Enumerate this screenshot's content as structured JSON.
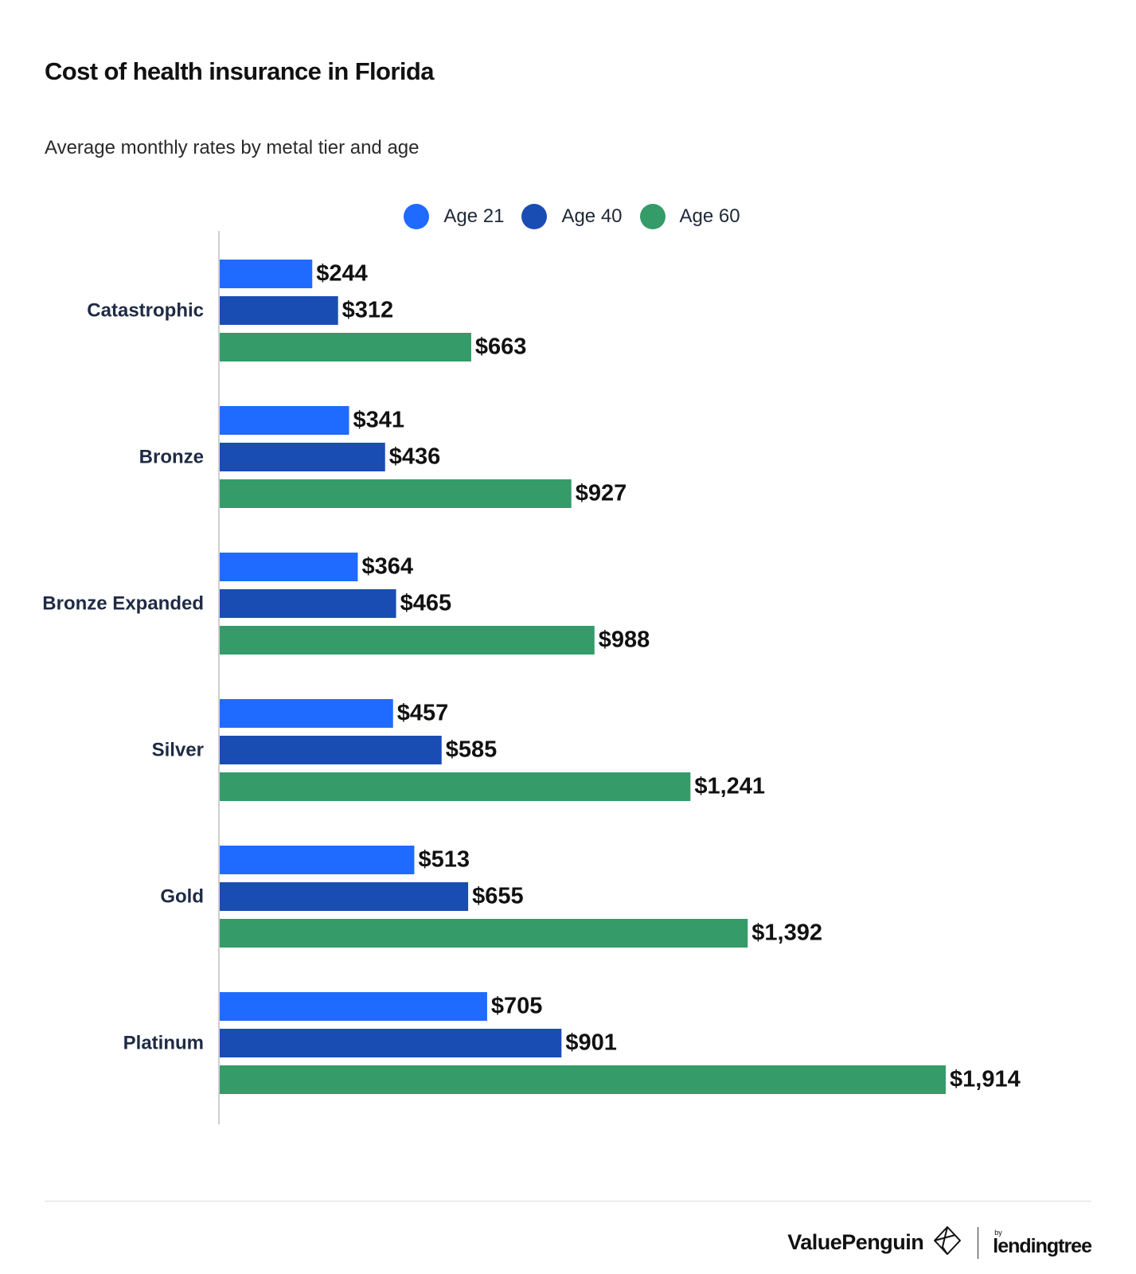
{
  "chart_data": {
    "type": "bar",
    "orientation": "horizontal",
    "title": "Cost of health insurance in Florida",
    "subtitle": "Average monthly rates by metal tier and age",
    "categories": [
      "Catastrophic",
      "Bronze",
      "Bronze Expanded",
      "Silver",
      "Gold",
      "Platinum"
    ],
    "series": [
      {
        "name": "Age 21",
        "color": "#1f6bff",
        "values": [
          244,
          341,
          364,
          457,
          513,
          705
        ],
        "labels": [
          "$244",
          "$341",
          "$364",
          "$457",
          "$513",
          "$705"
        ]
      },
      {
        "name": "Age 40",
        "color": "#1a4db3",
        "values": [
          312,
          436,
          465,
          585,
          655,
          901
        ],
        "labels": [
          "$312",
          "$436",
          "$465",
          "$585",
          "$655",
          "$901"
        ]
      },
      {
        "name": "Age 60",
        "color": "#349b69",
        "values": [
          663,
          927,
          988,
          1241,
          1392,
          1914
        ],
        "labels": [
          "$663",
          "$927",
          "$988",
          "$1,241",
          "$1,392",
          "$1,914"
        ]
      }
    ],
    "xlim": [
      0,
      1914
    ],
    "grid": false,
    "legend_position": "top-center"
  },
  "branding": {
    "valuepenguin": "ValuePenguin",
    "by": "by",
    "lendingtree": "lendingtree"
  }
}
